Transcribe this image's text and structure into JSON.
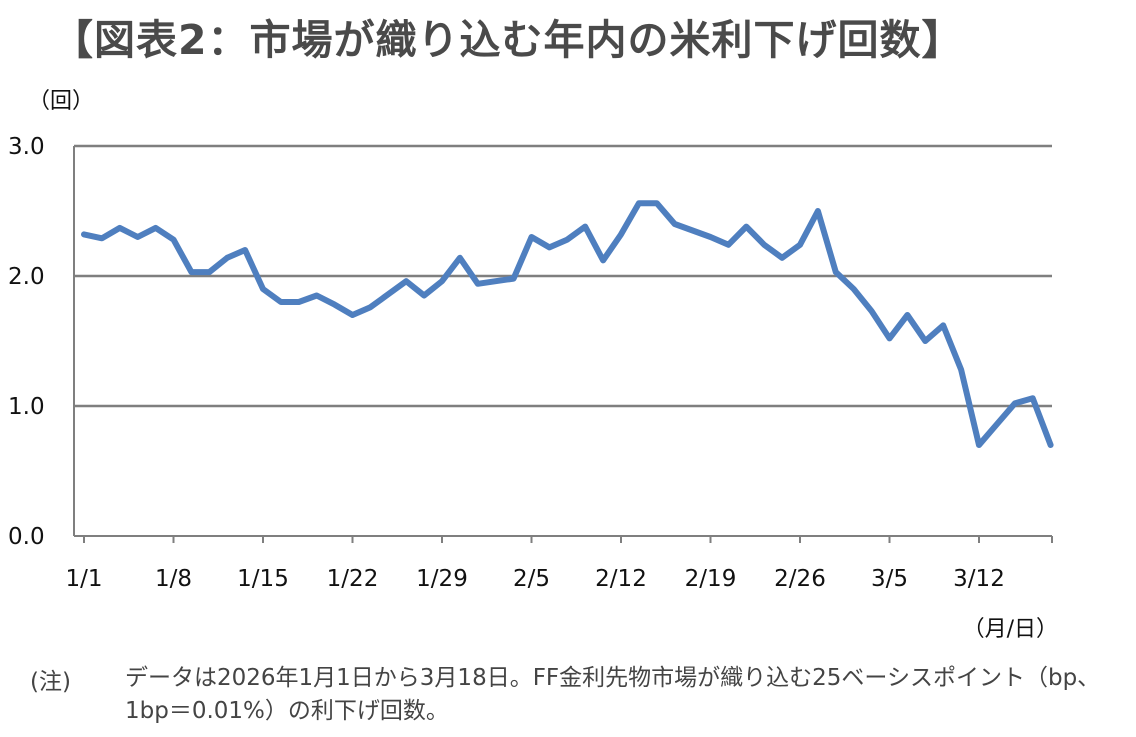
{
  "title": "【図表2：市場が織り込む年内の米利下げ回数】",
  "note": {
    "label": "(注)",
    "text": "データは2026年1月1日から3月18日。FF金利先物市場が織り込む25ベーシスポイント（bp、1bp＝0.01%）の利下げ回数。"
  },
  "chart_data": {
    "type": "line",
    "ylabel": "（回）",
    "xlabel": "（月/日）",
    "ylim": [
      0,
      3
    ],
    "yticks": [
      "0.0",
      "1.0",
      "2.0",
      "3.0"
    ],
    "xticks": [
      "1/1",
      "1/8",
      "1/15",
      "1/22",
      "1/29",
      "2/5",
      "2/12",
      "2/19",
      "2/26",
      "3/5",
      "3/12"
    ],
    "grid": true,
    "line_color": "#4f7fbf",
    "x": [
      "1/1",
      "1/2",
      "1/5",
      "1/6",
      "1/7",
      "1/8",
      "1/9",
      "1/12",
      "1/13",
      "1/14",
      "1/15",
      "1/16",
      "1/19",
      "1/20",
      "1/21",
      "1/22",
      "1/23",
      "1/26",
      "1/27",
      "1/28",
      "1/29",
      "1/30",
      "2/2",
      "2/3",
      "2/4",
      "2/5",
      "2/6",
      "2/9",
      "2/10",
      "2/11",
      "2/12",
      "2/13",
      "2/16",
      "2/17",
      "2/18",
      "2/19",
      "2/20",
      "2/23",
      "2/24",
      "2/25",
      "2/26",
      "2/27",
      "3/2",
      "3/3",
      "3/4",
      "3/5",
      "3/6",
      "3/9",
      "3/10",
      "3/11",
      "3/12",
      "3/13",
      "3/16",
      "3/17",
      "3/18"
    ],
    "series": [
      {
        "values": [
          2.32,
          2.29,
          2.37,
          2.3,
          2.37,
          2.28,
          2.03,
          2.03,
          2.14,
          2.2,
          1.9,
          1.8,
          1.8,
          1.85,
          1.78,
          1.7,
          1.76,
          1.86,
          1.96,
          1.85,
          1.96,
          2.14,
          1.94,
          1.96,
          1.98,
          2.3,
          2.22,
          2.28,
          2.38,
          2.12,
          2.32,
          2.56,
          2.56,
          2.4,
          2.35,
          2.3,
          2.24,
          2.38,
          2.24,
          2.14,
          2.24,
          2.5,
          2.03,
          1.9,
          1.73,
          1.52,
          1.7,
          1.5,
          1.62,
          1.28,
          0.7,
          0.86,
          1.02,
          1.06,
          0.7
        ]
      }
    ]
  }
}
